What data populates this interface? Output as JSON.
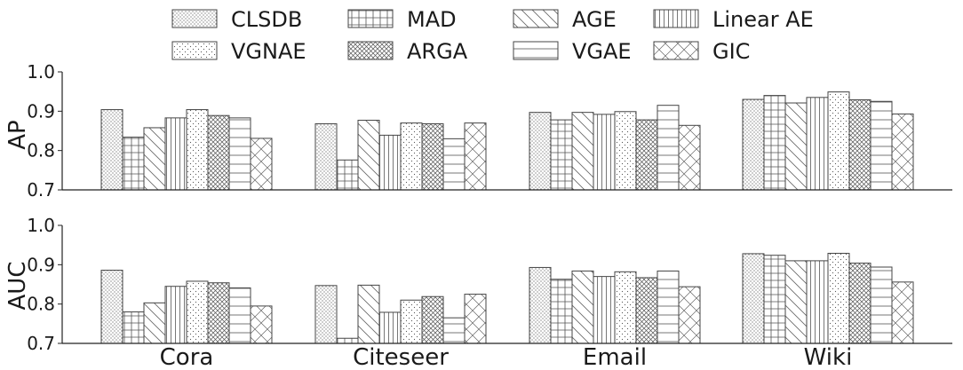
{
  "chart_data": [
    {
      "type": "bar",
      "ylabel": "AP",
      "xlabel": "",
      "ylim": [
        0.7,
        1.0
      ],
      "yticks": [
        "0.7",
        "0.8",
        "0.9",
        "1.0"
      ],
      "categories": [
        "Cora",
        "Citeseer",
        "Email",
        "Wiki"
      ],
      "series": [
        {
          "name": "CLSDB",
          "values": [
            0.904,
            0.868,
            0.897,
            0.93
          ]
        },
        {
          "name": "MAD",
          "values": [
            0.834,
            0.776,
            0.878,
            0.94
          ]
        },
        {
          "name": "AGE",
          "values": [
            0.858,
            0.877,
            0.897,
            0.921
          ]
        },
        {
          "name": "Linear AE",
          "values": [
            0.883,
            0.839,
            0.892,
            0.935
          ]
        },
        {
          "name": "VGNAE",
          "values": [
            0.904,
            0.87,
            0.899,
            0.949
          ]
        },
        {
          "name": "ARGA",
          "values": [
            0.889,
            0.868,
            0.878,
            0.929
          ]
        },
        {
          "name": "VGAE",
          "values": [
            0.883,
            0.83,
            0.915,
            0.925
          ]
        },
        {
          "name": "GIC",
          "values": [
            0.831,
            0.87,
            0.864,
            0.893
          ]
        }
      ]
    },
    {
      "type": "bar",
      "ylabel": "AUC",
      "xlabel": "",
      "ylim": [
        0.7,
        1.0
      ],
      "yticks": [
        "0.7",
        "0.8",
        "0.9",
        "1.0"
      ],
      "categories": [
        "Cora",
        "Citeseer",
        "Email",
        "Wiki"
      ],
      "series": [
        {
          "name": "CLSDB",
          "values": [
            0.886,
            0.847,
            0.893,
            0.928
          ]
        },
        {
          "name": "MAD",
          "values": [
            0.78,
            0.713,
            0.863,
            0.924
          ]
        },
        {
          "name": "AGE",
          "values": [
            0.803,
            0.848,
            0.884,
            0.91
          ]
        },
        {
          "name": "Linear AE",
          "values": [
            0.845,
            0.779,
            0.87,
            0.91
          ]
        },
        {
          "name": "VGNAE",
          "values": [
            0.858,
            0.81,
            0.882,
            0.929
          ]
        },
        {
          "name": "ARGA",
          "values": [
            0.854,
            0.819,
            0.867,
            0.904
          ]
        },
        {
          "name": "VGAE",
          "values": [
            0.841,
            0.765,
            0.884,
            0.894
          ]
        },
        {
          "name": "GIC",
          "values": [
            0.795,
            0.825,
            0.844,
            0.856
          ]
        }
      ]
    }
  ],
  "legend": {
    "placement": "top",
    "columns": 4,
    "items": [
      {
        "name": "CLSDB",
        "pattern": "dots-dense"
      },
      {
        "name": "MAD",
        "pattern": "grid"
      },
      {
        "name": "AGE",
        "pattern": "diagonal-back"
      },
      {
        "name": "Linear AE",
        "pattern": "vertical"
      },
      {
        "name": "VGNAE",
        "pattern": "dots-sparse"
      },
      {
        "name": "ARGA",
        "pattern": "crosshatch"
      },
      {
        "name": "VGAE",
        "pattern": "horizontal"
      },
      {
        "name": "GIC",
        "pattern": "diagonal-cross"
      }
    ]
  },
  "colors": {
    "bar_fill": "#ffffff",
    "bar_edge": "#444444",
    "hatch": "#555555",
    "axis": "#222222"
  }
}
